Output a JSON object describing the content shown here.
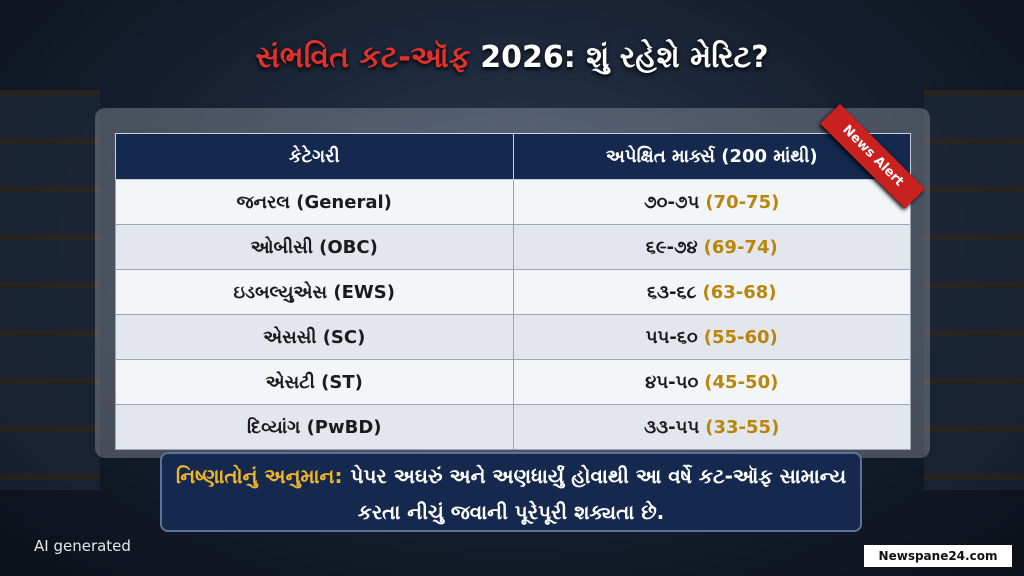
{
  "header": {
    "title_highlight": "સંભવિત કટ-ઑફ",
    "title_rest": "2026: શું રહેશે મેરિટ?",
    "badge": "News Alert"
  },
  "table": {
    "columns": [
      "કેટેગરી",
      "અપેક્ષિત માર્ક્સ (200 માંથી)"
    ],
    "rows": [
      {
        "category": "જનરલ (General)",
        "marks": "૭૦-૭૫",
        "marks_latin": "(70-75)"
      },
      {
        "category": "ઓબીસી (OBC)",
        "marks": "૬૯-૭૪",
        "marks_latin": "(69-74)"
      },
      {
        "category": "ઇડબલ્યુએસ (EWS)",
        "marks": "૬૩-૬૮",
        "marks_latin": "(63-68)"
      },
      {
        "category": "એસસી (SC)",
        "marks": "૫૫-૬૦",
        "marks_latin": "(55-60)"
      },
      {
        "category": "એસટી (ST)",
        "marks": "૪૫-૫૦",
        "marks_latin": "(45-50)"
      },
      {
        "category": "દિવ્યાંગ (PwBD)",
        "marks": "૩૩-૫૫",
        "marks_latin": "(33-55)"
      }
    ]
  },
  "note": {
    "label": "નિષ્ણાતોનું અનુમાન:",
    "text": "પેપર અઘરું અને અણધાર્યું હોવાથી આ વર્ષે કટ-ઑફ સામાન્ય કરતા નીચું જવાની પૂરેપૂરી શક્યતા છે."
  },
  "footer": {
    "ai_label": "AI generated",
    "site": "Newspane24.com"
  }
}
